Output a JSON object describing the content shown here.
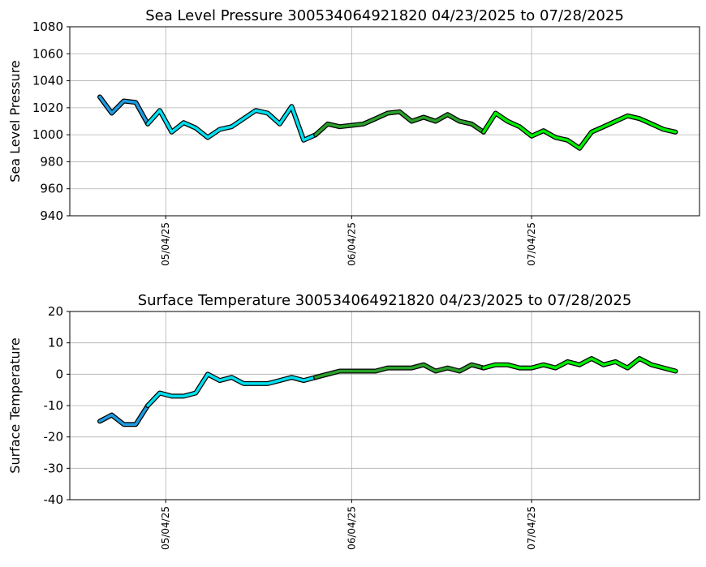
{
  "chart_data": [
    {
      "type": "line",
      "title": "Sea Level Pressure 300534064921820  04/23/2025 to 07/28/2025",
      "ylabel": "Sea Level Pressure",
      "xlim": [
        "04/18/25",
        "08/01/25"
      ],
      "xticks": [
        "05/04/25",
        "06/04/25",
        "07/04/25"
      ],
      "ylim": [
        940,
        1080
      ],
      "yticks": [
        940,
        960,
        980,
        1000,
        1020,
        1040,
        1060,
        1080
      ],
      "grid": true,
      "series": [
        {
          "color": "#1e9be0",
          "x": [
            "04/23/25",
            "04/25/25",
            "04/27/25",
            "04/29/25",
            "05/01/25"
          ],
          "values": [
            1028,
            1016,
            1025,
            1024,
            1008
          ]
        },
        {
          "color": "#00e0f0",
          "x": [
            "05/01/25",
            "05/03/25",
            "05/05/25",
            "05/07/25",
            "05/09/25",
            "05/11/25",
            "05/13/25",
            "05/15/25",
            "05/17/25",
            "05/19/25",
            "05/21/25",
            "05/23/25",
            "05/25/25",
            "05/27/25",
            "05/29/25"
          ],
          "values": [
            1008,
            1018,
            1002,
            1009,
            1005,
            998,
            1004,
            1006,
            1012,
            1018,
            1016,
            1008,
            1021,
            996,
            1000
          ]
        },
        {
          "color": "#2aa02a",
          "x": [
            "05/29/25",
            "05/31/25",
            "06/02/25",
            "06/04/25",
            "06/06/25",
            "06/08/25",
            "06/10/25",
            "06/12/25",
            "06/14/25",
            "06/16/25",
            "06/18/25",
            "06/20/25",
            "06/22/25",
            "06/24/25",
            "06/26/25"
          ],
          "values": [
            1000,
            1008,
            1006,
            1007,
            1008,
            1012,
            1016,
            1017,
            1010,
            1013,
            1010,
            1015,
            1010,
            1008,
            1002
          ]
        },
        {
          "color": "#00ee00",
          "x": [
            "06/26/25",
            "06/28/25",
            "06/30/25",
            "07/02/25",
            "07/04/25",
            "07/06/25",
            "07/08/25",
            "07/10/25",
            "07/12/25",
            "07/14/25",
            "07/16/25",
            "07/18/25",
            "07/20/25",
            "07/22/25",
            "07/24/25",
            "07/26/25",
            "07/28/25"
          ],
          "values": [
            1002,
            1016,
            1010,
            1006,
            999,
            1003,
            998,
            996,
            990,
            1002,
            1006,
            1010,
            1014,
            1012,
            1008,
            1004,
            1002
          ]
        }
      ]
    },
    {
      "type": "line",
      "title": "Surface Temperature 300534064921820  04/23/2025 to 07/28/2025",
      "ylabel": "Surface Temperature",
      "xlim": [
        "04/18/25",
        "08/01/25"
      ],
      "xticks": [
        "05/04/25",
        "06/04/25",
        "07/04/25"
      ],
      "ylim": [
        -40,
        20
      ],
      "yticks": [
        -40,
        -30,
        -20,
        -10,
        0,
        10,
        20
      ],
      "grid": true,
      "series": [
        {
          "color": "#1e9be0",
          "x": [
            "04/23/25",
            "04/25/25",
            "04/27/25",
            "04/29/25",
            "05/01/25"
          ],
          "values": [
            -15,
            -13,
            -16,
            -16,
            -10
          ]
        },
        {
          "color": "#00e0f0",
          "x": [
            "05/01/25",
            "05/03/25",
            "05/05/25",
            "05/07/25",
            "05/09/25",
            "05/11/25",
            "05/13/25",
            "05/15/25",
            "05/17/25",
            "05/19/25",
            "05/21/25",
            "05/23/25",
            "05/25/25",
            "05/27/25",
            "05/29/25"
          ],
          "values": [
            -10,
            -6,
            -7,
            -7,
            -6,
            0,
            -2,
            -1,
            -3,
            -3,
            -3,
            -2,
            -1,
            -2,
            -1
          ]
        },
        {
          "color": "#2aa02a",
          "x": [
            "05/29/25",
            "05/31/25",
            "06/02/25",
            "06/04/25",
            "06/06/25",
            "06/08/25",
            "06/10/25",
            "06/12/25",
            "06/14/25",
            "06/16/25",
            "06/18/25",
            "06/20/25",
            "06/22/25",
            "06/24/25",
            "06/26/25"
          ],
          "values": [
            -1,
            0,
            1,
            1,
            1,
            1,
            2,
            2,
            2,
            3,
            1,
            2,
            1,
            3,
            2
          ]
        },
        {
          "color": "#00ee00",
          "x": [
            "06/26/25",
            "06/28/25",
            "06/30/25",
            "07/02/25",
            "07/04/25",
            "07/06/25",
            "07/08/25",
            "07/10/25",
            "07/12/25",
            "07/14/25",
            "07/16/25",
            "07/18/25",
            "07/20/25",
            "07/22/25",
            "07/24/25",
            "07/26/25",
            "07/28/25"
          ],
          "values": [
            2,
            3,
            3,
            2,
            2,
            3,
            2,
            4,
            3,
            5,
            3,
            4,
            2,
            5,
            3,
            2,
            1
          ]
        }
      ]
    }
  ]
}
